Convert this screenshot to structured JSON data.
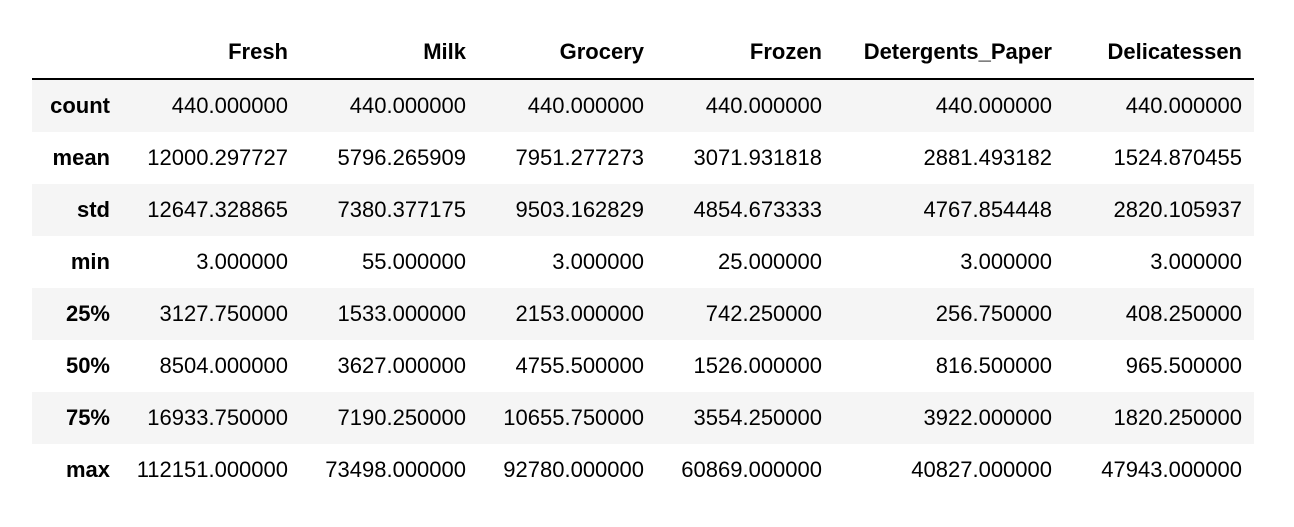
{
  "table": {
    "index_header": "",
    "columns": [
      "Fresh",
      "Milk",
      "Grocery",
      "Frozen",
      "Detergents_Paper",
      "Delicatessen"
    ],
    "rows": [
      {
        "label": "count",
        "values": [
          "440.000000",
          "440.000000",
          "440.000000",
          "440.000000",
          "440.000000",
          "440.000000"
        ]
      },
      {
        "label": "mean",
        "values": [
          "12000.297727",
          "5796.265909",
          "7951.277273",
          "3071.931818",
          "2881.493182",
          "1524.870455"
        ]
      },
      {
        "label": "std",
        "values": [
          "12647.328865",
          "7380.377175",
          "9503.162829",
          "4854.673333",
          "4767.854448",
          "2820.105937"
        ]
      },
      {
        "label": "min",
        "values": [
          "3.000000",
          "55.000000",
          "3.000000",
          "25.000000",
          "3.000000",
          "3.000000"
        ]
      },
      {
        "label": "25%",
        "values": [
          "3127.750000",
          "1533.000000",
          "2153.000000",
          "742.250000",
          "256.750000",
          "408.250000"
        ]
      },
      {
        "label": "50%",
        "values": [
          "8504.000000",
          "3627.000000",
          "4755.500000",
          "1526.000000",
          "816.500000",
          "965.500000"
        ]
      },
      {
        "label": "75%",
        "values": [
          "16933.750000",
          "7190.250000",
          "10655.750000",
          "3554.250000",
          "3922.000000",
          "1820.250000"
        ]
      },
      {
        "label": "max",
        "values": [
          "112151.000000",
          "73498.000000",
          "92780.000000",
          "60869.000000",
          "40827.000000",
          "47943.000000"
        ]
      }
    ]
  },
  "colors": {
    "row_shade": "#f5f5f5",
    "text": "#000000",
    "header_rule": "#000000"
  }
}
